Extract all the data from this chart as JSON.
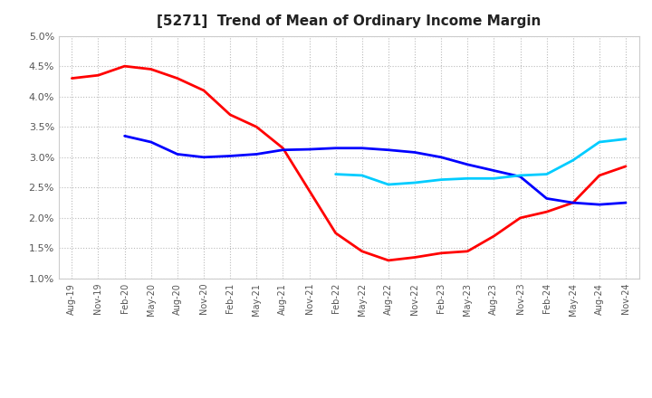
{
  "title": "[5271]  Trend of Mean of Ordinary Income Margin",
  "title_fontsize": 11,
  "ylim": [
    0.01,
    0.05
  ],
  "yticks": [
    0.01,
    0.015,
    0.02,
    0.025,
    0.03,
    0.035,
    0.04,
    0.045,
    0.05
  ],
  "ytick_labels": [
    "1.0%",
    "1.5%",
    "2.0%",
    "2.5%",
    "3.0%",
    "3.5%",
    "4.0%",
    "4.5%",
    "5.0%"
  ],
  "x_labels": [
    "Aug-19",
    "Nov-19",
    "Feb-20",
    "May-20",
    "Aug-20",
    "Nov-20",
    "Feb-21",
    "May-21",
    "Aug-21",
    "Nov-21",
    "Feb-22",
    "May-22",
    "Aug-22",
    "Nov-22",
    "Feb-23",
    "May-23",
    "Aug-23",
    "Nov-23",
    "Feb-24",
    "May-24",
    "Aug-24",
    "Nov-24"
  ],
  "series_3y": [
    0.043,
    0.0435,
    0.045,
    0.0445,
    0.043,
    0.041,
    0.037,
    0.035,
    0.0315,
    0.0245,
    0.0175,
    0.0145,
    0.013,
    0.0135,
    0.0142,
    0.0145,
    0.017,
    0.02,
    0.021,
    0.0225,
    0.027,
    0.0285
  ],
  "series_5y": [
    null,
    null,
    0.0335,
    0.0325,
    0.0305,
    0.03,
    0.0302,
    0.0305,
    0.0312,
    0.0313,
    0.0315,
    0.0315,
    0.0312,
    0.0308,
    0.03,
    0.0288,
    0.0278,
    0.0268,
    0.0232,
    0.0225,
    0.0222,
    0.0225
  ],
  "series_7y": [
    null,
    null,
    null,
    null,
    null,
    null,
    null,
    null,
    null,
    null,
    0.0272,
    0.027,
    0.0255,
    0.0258,
    0.0263,
    0.0265,
    0.0265,
    0.027,
    0.0272,
    0.0295,
    0.0325,
    0.033
  ],
  "series_10y": [
    null,
    null,
    null,
    null,
    null,
    null,
    null,
    null,
    null,
    null,
    null,
    null,
    null,
    null,
    null,
    null,
    null,
    null,
    null,
    null,
    null,
    null
  ],
  "color_3y": "#ff0000",
  "color_5y": "#0000ff",
  "color_7y": "#00ccff",
  "color_10y": "#008000",
  "linewidth": 2.0,
  "background_color": "#ffffff",
  "plot_bg_color": "#ffffff",
  "grid_color": "#bbbbbb"
}
